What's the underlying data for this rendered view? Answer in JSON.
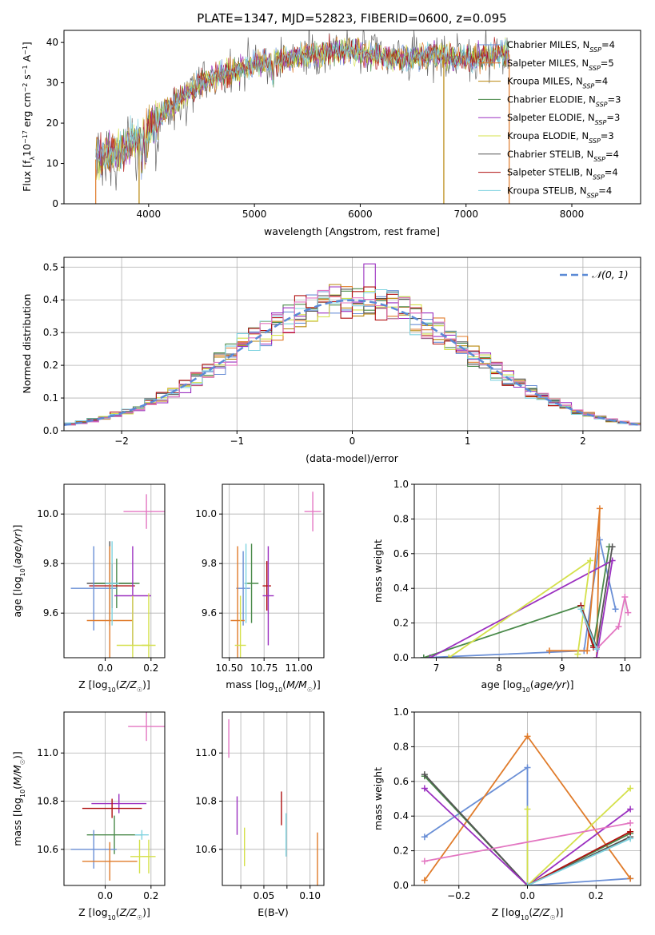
{
  "figure": {
    "title": "PLATE=1347, MJD=52823, FIBERID=0600, z=0.095",
    "colors": {
      "chabrier_miles": "#6a8fd6",
      "salpeter_miles": "#e07b2a",
      "kroupa_miles": "#b8860b",
      "chabrier_elodie": "#4a8a4a",
      "salpeter_elodie": "#9b30c0",
      "kroupa_elodie": "#d4e04a",
      "chabrier_stelib": "#555555",
      "salpeter_stelib": "#b01010",
      "kroupa_stelib": "#7fd3e0",
      "pink": "#e377c2"
    }
  },
  "chart_data": [
    {
      "id": "spectrum",
      "type": "line",
      "xlabel": "wavelength [Angstrom, rest frame]",
      "ylabel": "Flux [f_λ 10^-17 erg cm^-2 s^-1 A^-1]",
      "xlim": [
        3200,
        8650
      ],
      "ylim": [
        0,
        43
      ],
      "xticks": [
        4000,
        5000,
        6000,
        7000,
        8000
      ],
      "yticks": [
        0,
        10,
        20,
        30,
        40
      ],
      "grid": false,
      "legend_position": "right",
      "legend": [
        {
          "name": "Chabrier MILES",
          "nssp": "4",
          "color": "#6a8fd6"
        },
        {
          "name": "Salpeter MILES",
          "nssp": "5",
          "color": "#e07b2a"
        },
        {
          "name": "Kroupa MILES",
          "nssp": "4",
          "color": "#b8860b"
        },
        {
          "name": "Chabrier ELODIE",
          "nssp": "3",
          "color": "#4a8a4a"
        },
        {
          "name": "Salpeter ELODIE",
          "nssp": "3",
          "color": "#9b30c0"
        },
        {
          "name": "Kroupa ELODIE",
          "nssp": "3",
          "color": "#d4e04a"
        },
        {
          "name": "Chabrier STELIB",
          "nssp": "4",
          "color": "#555555"
        },
        {
          "name": "Salpeter STELIB",
          "nssp": "4",
          "color": "#b01010"
        },
        {
          "name": "Kroupa STELIB",
          "nssp": "4",
          "color": "#7fd3e0"
        }
      ],
      "spectrum_continuum": [
        [
          3500,
          11
        ],
        [
          3700,
          13
        ],
        [
          3850,
          15
        ],
        [
          3950,
          17
        ],
        [
          4050,
          20
        ],
        [
          4200,
          24
        ],
        [
          4350,
          27
        ],
        [
          4500,
          30
        ],
        [
          4700,
          32
        ],
        [
          4900,
          34
        ],
        [
          5100,
          35
        ],
        [
          5300,
          36
        ],
        [
          5500,
          37
        ],
        [
          5700,
          37.5
        ],
        [
          5900,
          38
        ],
        [
          6100,
          37
        ],
        [
          6300,
          36
        ],
        [
          6500,
          36
        ],
        [
          6700,
          37
        ],
        [
          6900,
          36
        ],
        [
          7100,
          36
        ],
        [
          7300,
          37
        ],
        [
          7410,
          37
        ]
      ]
    },
    {
      "id": "residuals",
      "type": "histogram",
      "xlabel": "(data-model)/error",
      "ylabel": "Normed distribution",
      "xlim": [
        -2.5,
        2.5
      ],
      "ylim": [
        0,
        0.53
      ],
      "xticks": [
        -2,
        -1,
        0,
        1,
        2
      ],
      "yticks": [
        0.0,
        0.1,
        0.2,
        0.3,
        0.4,
        0.5
      ],
      "grid": true,
      "legend_position": "top-right",
      "reference_label": "𝒩(0, 1)",
      "reference": {
        "mean": 0,
        "sigma": 1
      }
    },
    {
      "id": "age_vs_Z",
      "type": "errorbar",
      "xlabel": "Z [log10(Z/Z☉)]",
      "ylabel": "age  [log10(age/yr)]",
      "xlim": [
        -0.18,
        0.26
      ],
      "ylim": [
        9.42,
        10.12
      ],
      "xticks": [
        0.0,
        0.2
      ],
      "yticks": [
        9.6,
        9.8,
        10.0
      ],
      "grid": true,
      "points": [
        {
          "x": 0.18,
          "y": 10.01,
          "xerr": 0.1,
          "yerr": 0.07,
          "color": "#e377c2"
        },
        {
          "x": 0.02,
          "y": 9.72,
          "xerr": 0.1,
          "yerr": 0.17,
          "color": "#555555"
        },
        {
          "x": 0.05,
          "y": 9.72,
          "xerr": 0.1,
          "yerr": 0.1,
          "color": "#4a8a4a"
        },
        {
          "x": 0.03,
          "y": 9.71,
          "xerr": 0.1,
          "yerr": 0.09,
          "color": "#b01010"
        },
        {
          "x": -0.05,
          "y": 9.7,
          "xerr": 0.1,
          "yerr": 0.17,
          "color": "#6a8fd6"
        },
        {
          "x": 0.12,
          "y": 9.67,
          "xerr": 0.08,
          "yerr": 0.2,
          "color": "#9b30c0"
        },
        {
          "x": 0.02,
          "y": 9.57,
          "xerr": 0.1,
          "yerr": 0.3,
          "color": "#e07b2a"
        },
        {
          "x": 0.03,
          "y": 9.72,
          "xerr": 0.03,
          "yerr": 0.17,
          "color": "#7fd3e0"
        },
        {
          "x": 0.19,
          "y": 9.47,
          "xerr": 0.03,
          "yerr": 0.21,
          "color": "#d4e04a"
        },
        {
          "x": 0.12,
          "y": 9.47,
          "xerr": 0.07,
          "yerr": 0.2,
          "color": "#d4e04a"
        }
      ]
    },
    {
      "id": "age_vs_mass",
      "type": "errorbar",
      "xlabel": "mass [log10(M/M☉)]",
      "ylabel": "",
      "xlim": [
        10.45,
        11.18
      ],
      "ylim": [
        9.42,
        10.12
      ],
      "xticks": [
        10.5,
        10.75,
        11.0
      ],
      "xticklabels": [
        "10.50",
        "10.75",
        "11.00"
      ],
      "yticks": [
        9.6,
        9.8,
        10.0
      ],
      "grid": true,
      "points": [
        {
          "x": 11.1,
          "y": 10.01,
          "xerr": 0.06,
          "yerr": 0.08,
          "color": "#e377c2"
        },
        {
          "x": 10.66,
          "y": 9.72,
          "xerr": 0.05,
          "yerr": 0.16,
          "color": "#4a8a4a"
        },
        {
          "x": 10.6,
          "y": 9.7,
          "xerr": 0.05,
          "yerr": 0.15,
          "color": "#6a8fd6"
        },
        {
          "x": 10.77,
          "y": 9.71,
          "xerr": 0.03,
          "yerr": 0.1,
          "color": "#b01010"
        },
        {
          "x": 10.78,
          "y": 9.67,
          "xerr": 0.04,
          "yerr": 0.2,
          "color": "#9b30c0"
        },
        {
          "x": 10.56,
          "y": 9.57,
          "xerr": 0.05,
          "yerr": 0.3,
          "color": "#e07b2a"
        },
        {
          "x": 10.62,
          "y": 9.72,
          "xerr": 0.01,
          "yerr": 0.16,
          "color": "#7fd3e0"
        },
        {
          "x": 10.58,
          "y": 9.47,
          "xerr": 0.04,
          "yerr": 0.2,
          "color": "#d4e04a"
        }
      ]
    },
    {
      "id": "weight_vs_age",
      "type": "line",
      "xlabel": "age  [log10(age/yr)]",
      "ylabel": "mass weight",
      "xlim": [
        6.65,
        10.25
      ],
      "ylim": [
        0,
        1.0
      ],
      "xticks": [
        7,
        8,
        9,
        10
      ],
      "yticks": [
        0.0,
        0.2,
        0.4,
        0.6,
        0.8,
        1.0
      ],
      "grid": true,
      "series": [
        {
          "color": "#6a8fd6",
          "x": [
            6.8,
            9.35,
            9.6,
            9.85
          ],
          "y": [
            0.0,
            0.04,
            0.68,
            0.28
          ]
        },
        {
          "color": "#e07b2a",
          "x": [
            8.8,
            9.4,
            9.6,
            9.55
          ],
          "y": [
            0.04,
            0.04,
            0.86,
            0.0
          ]
        },
        {
          "color": "#4a8a4a",
          "x": [
            6.8,
            9.3,
            9.5,
            9.75
          ],
          "y": [
            0.0,
            0.3,
            0.07,
            0.64
          ]
        },
        {
          "color": "#9b30c0",
          "x": [
            6.9,
            9.8,
            9.55
          ],
          "y": [
            0.0,
            0.56,
            0.0
          ]
        },
        {
          "color": "#d4e04a",
          "x": [
            7.2,
            9.45,
            9.25
          ],
          "y": [
            0.0,
            0.56,
            0.02
          ]
        },
        {
          "color": "#555555",
          "x": [
            9.3,
            9.55,
            9.8
          ],
          "y": [
            0.3,
            0.06,
            0.64
          ]
        },
        {
          "color": "#e377c2",
          "x": [
            9.55,
            9.9,
            10.0,
            10.05
          ],
          "y": [
            0.05,
            0.18,
            0.35,
            0.26
          ]
        },
        {
          "color": "#b01010",
          "x": [
            9.3,
            9.5
          ],
          "y": [
            0.3,
            0.06
          ]
        },
        {
          "color": "#7fd3e0",
          "x": [
            9.3,
            9.55
          ],
          "y": [
            0.28,
            0.05
          ]
        }
      ]
    },
    {
      "id": "mass_vs_Z",
      "type": "errorbar",
      "xlabel": "Z [log10(Z/Z☉)]",
      "ylabel": "mass [log10(M/M☉)]",
      "xlim": [
        -0.18,
        0.26
      ],
      "ylim": [
        10.45,
        11.17
      ],
      "xticks": [
        0.0,
        0.2
      ],
      "yticks": [
        10.6,
        10.8,
        11.0
      ],
      "grid": true,
      "points": [
        {
          "x": 0.18,
          "y": 11.11,
          "xerr": 0.08,
          "yerr": 0.06,
          "color": "#e377c2"
        },
        {
          "x": 0.06,
          "y": 10.79,
          "xerr": 0.12,
          "yerr": 0.04,
          "color": "#9b30c0"
        },
        {
          "x": 0.03,
          "y": 10.77,
          "xerr": 0.13,
          "yerr": 0.04,
          "color": "#b01010"
        },
        {
          "x": 0.04,
          "y": 10.66,
          "xerr": 0.12,
          "yerr": 0.08,
          "color": "#4a8a4a"
        },
        {
          "x": -0.05,
          "y": 10.6,
          "xerr": 0.1,
          "yerr": 0.08,
          "color": "#6a8fd6"
        },
        {
          "x": 0.02,
          "y": 10.55,
          "xerr": 0.12,
          "yerr": 0.08,
          "color": "#e07b2a"
        },
        {
          "x": 0.19,
          "y": 10.57,
          "xerr": 0.03,
          "yerr": 0.07,
          "color": "#d4e04a"
        },
        {
          "x": 0.15,
          "y": 10.57,
          "xerr": 0.04,
          "yerr": 0.07,
          "color": "#d4e04a"
        },
        {
          "x": 0.16,
          "y": 10.66,
          "xerr": 0.03,
          "yerr": 0.02,
          "color": "#7fd3e0"
        }
      ]
    },
    {
      "id": "mass_vs_ebv",
      "type": "errorbar",
      "xlabel": "E(B-V)",
      "ylabel": "",
      "xlim": [
        0.005,
        0.115
      ],
      "ylim": [
        10.45,
        11.17
      ],
      "xticks": [
        0.025,
        0.05,
        0.075,
        0.1
      ],
      "xticklabels": [
        "",
        "0.05",
        "",
        "0.10"
      ],
      "yticks": [
        10.6,
        10.8,
        11.0
      ],
      "grid": true,
      "points": [
        {
          "x": 0.012,
          "y": 11.06,
          "xerr": 0,
          "yerr": 0.08,
          "color": "#e377c2"
        },
        {
          "x": 0.021,
          "y": 10.74,
          "xerr": 0,
          "yerr": 0.08,
          "color": "#9b30c0"
        },
        {
          "x": 0.029,
          "y": 10.61,
          "xerr": 0,
          "yerr": 0.08,
          "color": "#d4e04a"
        },
        {
          "x": 0.069,
          "y": 10.77,
          "xerr": 0,
          "yerr": 0.07,
          "color": "#b01010"
        },
        {
          "x": 0.074,
          "y": 10.66,
          "xerr": 0,
          "yerr": 0.09,
          "color": "#7fd3e0"
        },
        {
          "x": 0.108,
          "y": 10.55,
          "xerr": 0,
          "yerr": 0.12,
          "color": "#e07b2a"
        }
      ]
    },
    {
      "id": "weight_vs_Z",
      "type": "line",
      "xlabel": "Z [log10(Z/Z☉)]",
      "ylabel": "mass weight",
      "xlim": [
        -0.33,
        0.33
      ],
      "ylim": [
        0,
        1.0
      ],
      "xticks": [
        -0.2,
        0.0,
        0.2
      ],
      "yticks": [
        0.0,
        0.2,
        0.4,
        0.6,
        0.8,
        1.0
      ],
      "grid": true,
      "series": [
        {
          "color": "#6a8fd6",
          "x": [
            -0.3,
            0.0,
            0.0,
            0.3
          ],
          "y": [
            0.28,
            0.68,
            0.0,
            0.04
          ]
        },
        {
          "color": "#e07b2a",
          "x": [
            -0.3,
            0.0,
            0.3
          ],
          "y": [
            0.03,
            0.86,
            0.04
          ]
        },
        {
          "color": "#4a8a4a",
          "x": [
            -0.3,
            0.0,
            0.3
          ],
          "y": [
            0.63,
            0.0,
            0.3
          ]
        },
        {
          "color": "#555555",
          "x": [
            -0.3,
            0.0,
            0.3
          ],
          "y": [
            0.64,
            0.0,
            0.28
          ]
        },
        {
          "color": "#9b30c0",
          "x": [
            -0.3,
            0.0,
            0.3
          ],
          "y": [
            0.56,
            0.0,
            0.44
          ]
        },
        {
          "color": "#d4e04a",
          "x": [
            0.0,
            0.0,
            0.3
          ],
          "y": [
            0.44,
            0.0,
            0.56
          ]
        },
        {
          "color": "#e377c2",
          "x": [
            -0.3,
            0.3
          ],
          "y": [
            0.14,
            0.36
          ]
        },
        {
          "color": "#b01010",
          "x": [
            0.0,
            0.3
          ],
          "y": [
            0.0,
            0.31
          ]
        },
        {
          "color": "#7fd3e0",
          "x": [
            0.0,
            0.3
          ],
          "y": [
            0.0,
            0.27
          ]
        }
      ]
    }
  ]
}
